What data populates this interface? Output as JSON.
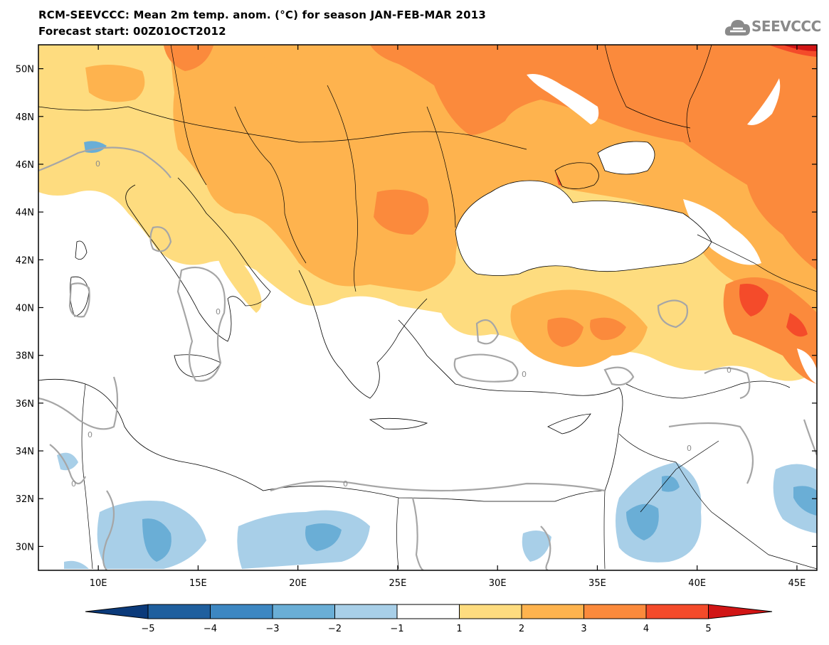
{
  "header": {
    "title_line1": "RCM-SEEVCCC: Mean 2m temp. anom. (°C) for season JAN-FEB-MAR 2013",
    "title_line2": "Forecast start: 00Z01OCT2012",
    "logo_text": "SEEVCCC"
  },
  "map": {
    "lon_ticks": [
      "10E",
      "15E",
      "20E",
      "25E",
      "30E",
      "35E",
      "40E",
      "45E"
    ],
    "lat_ticks": [
      "50N",
      "48N",
      "46N",
      "44N",
      "42N",
      "40N",
      "38N",
      "36N",
      "34N",
      "32N",
      "30N"
    ],
    "contour_label": "0",
    "lon_range": [
      7,
      46
    ],
    "lat_range": [
      29,
      51
    ]
  },
  "colorbar": {
    "labels": [
      "-5",
      "-4",
      "-3",
      "-2",
      "-1",
      "1",
      "2",
      "3",
      "4",
      "5"
    ],
    "colors": {
      "below_-5": "#0b3a7a",
      "-5_-4": "#1f5f9e",
      "-4_-3": "#3d87c2",
      "-3_-2": "#6aaed6",
      "-2_-1": "#a8cfe8",
      "-1_1": "#ffffff",
      "1_2": "#fedc7f",
      "2_3": "#feb34e",
      "3_4": "#fb8a3c",
      "4_5": "#f44b2a",
      "above_5": "#d11515"
    }
  },
  "colors": {
    "coast": "#000000",
    "contour_zero": "#a6a6a6",
    "logo": "#8a8a8a"
  }
}
